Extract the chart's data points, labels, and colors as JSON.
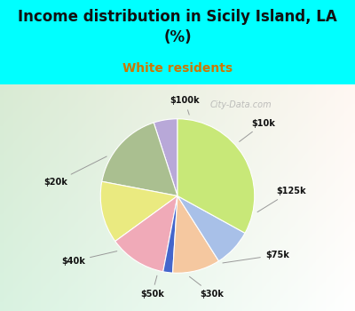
{
  "title": "Income distribution in Sicily Island, LA\n(%)",
  "subtitle": "White residents",
  "title_color": "#111111",
  "subtitle_color": "#cc7700",
  "background_color": "#00FFFF",
  "labels": [
    "$100k",
    "$10k",
    "$125k",
    "$75k",
    "$30k",
    "$50k",
    "$40k",
    "$20k"
  ],
  "values": [
    5,
    17,
    13,
    12,
    2,
    10,
    8,
    33
  ],
  "colors": [
    "#b8a8d8",
    "#aabf90",
    "#eaea80",
    "#f0aab8",
    "#4466cc",
    "#f5c8a0",
    "#a8c0e8",
    "#c8e878"
  ],
  "startangle": 90,
  "watermark": "City-Data.com"
}
